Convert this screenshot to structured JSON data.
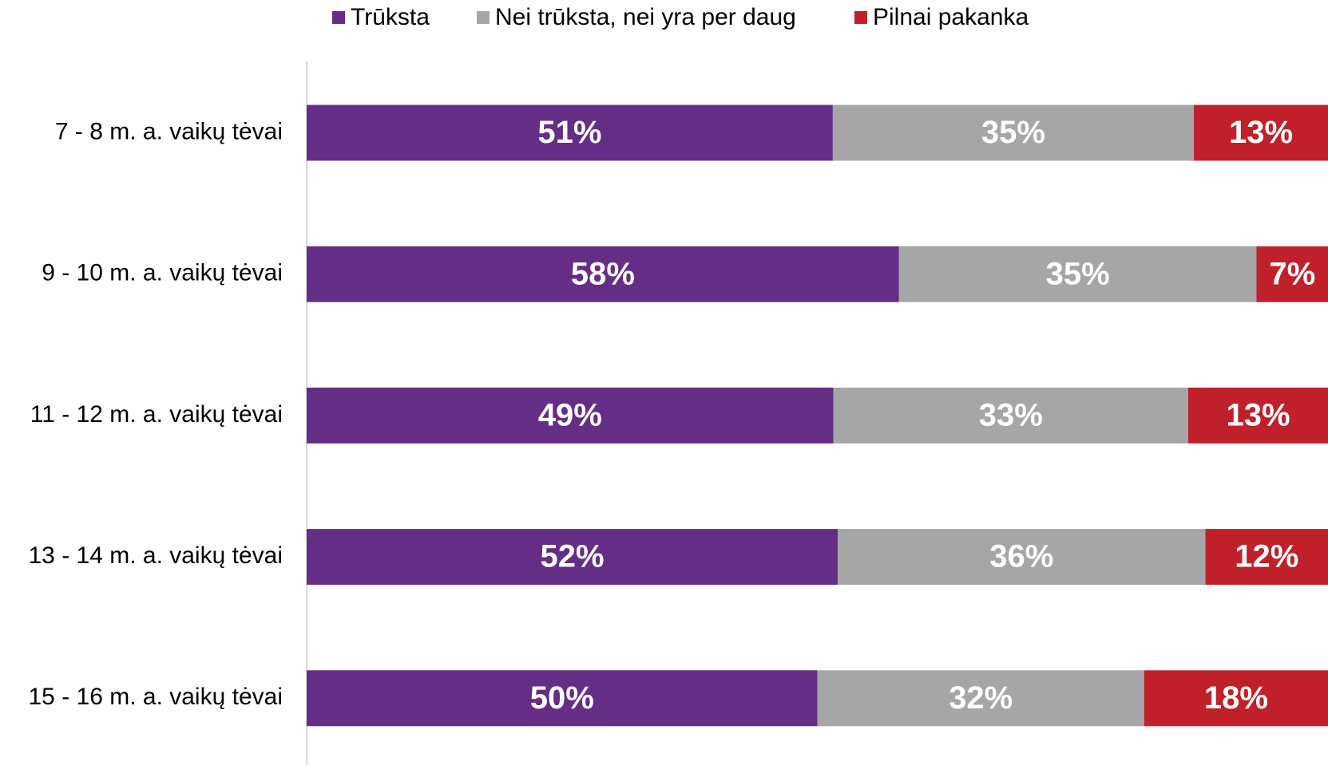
{
  "chart_data": {
    "type": "bar",
    "orientation": "horizontal",
    "stacked": "percent",
    "categories": [
      "7 - 8 m. a. vaikų tėvai",
      "9 - 10 m. a. vaikų tėvai",
      "11 - 12 m. a. vaikų tėvai",
      "13 - 14 m. a. vaikų tėvai",
      "15 - 16 m. a. vaikų tėvai"
    ],
    "series": [
      {
        "name": "Trūksta",
        "color": "#652d86",
        "values": [
          51,
          58,
          49,
          52,
          50
        ],
        "value_labels": [
          "51%",
          "58%",
          "49%",
          "52%",
          "50%"
        ]
      },
      {
        "name": "Nei trūksta, nei yra per daug",
        "color": "#a6a6a6",
        "values": [
          35,
          35,
          33,
          36,
          32
        ],
        "value_labels": [
          "35%",
          "35%",
          "33%",
          "36%",
          "32%"
        ]
      },
      {
        "name": "Pilnai pakanka",
        "color": "#c0202a",
        "values": [
          13,
          7,
          13,
          12,
          18
        ],
        "value_labels": [
          "13%",
          "7%",
          "13%",
          "12%",
          "18%"
        ]
      }
    ],
    "legend": "top"
  }
}
